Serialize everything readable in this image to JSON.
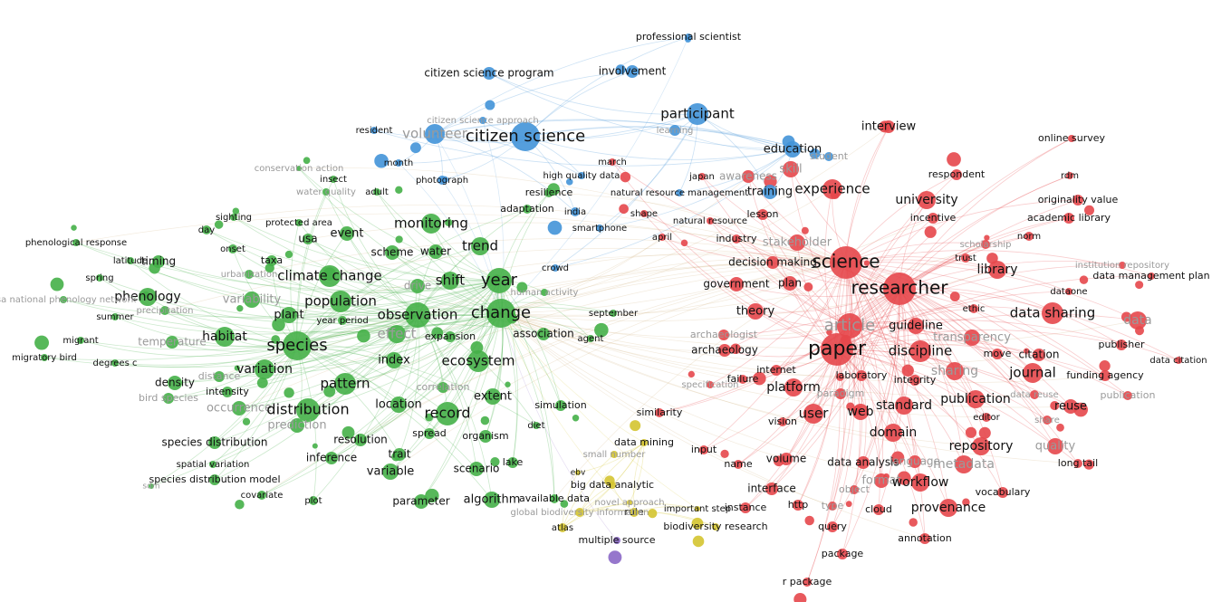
{
  "clusters": [
    {
      "color": "#4393d8",
      "labels": [
        "professional scientist",
        "citizen science program",
        "involvement",
        "participant",
        "volunteer",
        "citizen science",
        "education",
        "training",
        "citizen science approach",
        "learning",
        "high quality data",
        "natural resource management",
        "photograph",
        "smartphone",
        "india",
        "crowd",
        "month",
        "resident",
        "student"
      ]
    },
    {
      "color": "#45b048",
      "labels": [
        "conservation action",
        "insect",
        "adult",
        "water quality",
        "sighting",
        "protected area",
        "day",
        "onset",
        "usa",
        "event",
        "monitoring",
        "adaptation",
        "resilience",
        "trend",
        "scheme",
        "water",
        "phenological response",
        "latitude",
        "timing",
        "spring",
        "urbanization",
        "taxa",
        "climate change",
        "shift",
        "year",
        "phenology",
        "variability",
        "population",
        "plant",
        "summer",
        "year period",
        "observation",
        "change",
        "habitat",
        "species",
        "effect",
        "expansion",
        "association",
        "agent",
        "september",
        "human activity",
        "migrant",
        "migratory bird",
        "degrees c",
        "variation",
        "index",
        "ecosystem",
        "density",
        "distance",
        "intensity",
        "pattern",
        "bird species",
        "occurrence",
        "correlation",
        "extent",
        "location",
        "distribution",
        "record",
        "simulation",
        "prediction",
        "spread",
        "diet",
        "organism",
        "species distribution",
        "resolution",
        "trait",
        "inference",
        "spatial variation",
        "variable",
        "scenario",
        "lake",
        "species distribution model",
        "covariate",
        "plot",
        "parameter",
        "algorithm",
        "available data",
        "sdm",
        "usa national phenology network",
        "temperature",
        "precipitation",
        "drive"
      ]
    },
    {
      "color": "#d4c430",
      "labels": [
        "data mining",
        "small number",
        "big data analytic",
        "novel approach",
        "rule",
        "atlas",
        "biodiversity research",
        "global biodiversity information",
        "important step",
        "ebv"
      ]
    },
    {
      "color": "#8b68c6",
      "labels": [
        "multiple source"
      ]
    },
    {
      "color": "#e6474b",
      "labels": [
        "interview",
        "online survey",
        "march",
        "japan",
        "awareness",
        "skill",
        "respondent",
        "rdm",
        "experience",
        "university",
        "originality value",
        "lesson",
        "incentive",
        "academic library",
        "shape",
        "natural resource",
        "april",
        "industry",
        "stakeholder",
        "norm",
        "scholarship",
        "trust",
        "science",
        "decision making",
        "library",
        "institution repository",
        "data management plan",
        "government",
        "plan",
        "researcher",
        "dataone",
        "theory",
        "article",
        "guideline",
        "ethic",
        "data sharing",
        "data",
        "archaeologist",
        "paper",
        "discipline",
        "archaeology",
        "transparency",
        "publisher",
        "move",
        "citation",
        "data citation",
        "internet",
        "failure",
        "laboratory",
        "sharing",
        "integrity",
        "journal",
        "funding agency",
        "platform",
        "paradigm",
        "publication",
        "data reuse",
        "publication",
        "specification",
        "standard",
        "reuse",
        "similarity",
        "web",
        "user",
        "editor",
        "vision",
        "share",
        "domain",
        "repository",
        "quality",
        "input",
        "name",
        "volume",
        "data analysis",
        "language",
        "metadata",
        "long tail",
        "object",
        "format",
        "interface",
        "workflow",
        "vocabulary",
        "http",
        "instance",
        "type",
        "cloud",
        "provenance",
        "query",
        "annotation",
        "package",
        "r package"
      ]
    }
  ]
}
